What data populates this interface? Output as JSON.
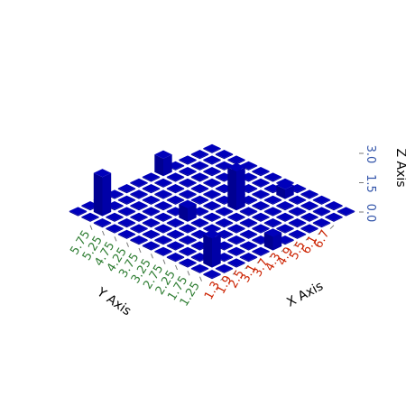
{
  "chart_data": {
    "type": "bar3d",
    "x_axis": {
      "label": "X Axis",
      "ticks": [
        "1.3",
        "1.9",
        "2.5",
        "3.1",
        "3.7",
        "4.3",
        "4.9",
        "5.5",
        "6.1",
        "6.7"
      ],
      "color": "#cc2200"
    },
    "y_axis": {
      "label": "Y Axis",
      "ticks": [
        "1.25",
        "1.75",
        "2.25",
        "2.75",
        "3.25",
        "3.75",
        "4.25",
        "4.75",
        "5.25",
        "5.75"
      ],
      "color": "#2e7d32"
    },
    "z_axis": {
      "label": "Z Axis",
      "ticks": [
        "0.0",
        "1.5",
        "3.0"
      ],
      "range": [
        0,
        3.0
      ],
      "color": "#3355aa"
    },
    "grid": {
      "cols": 12,
      "rows": 12
    },
    "bar_color": "#0000bb",
    "bars": [
      {
        "x_index": 1,
        "y_index": 10,
        "z": 2.0
      },
      {
        "x_index": 7,
        "y_index": 11,
        "z": 0.9
      },
      {
        "x_index": 7,
        "y_index": 5,
        "z": 2.0
      },
      {
        "x_index": 4,
        "y_index": 6,
        "z": 0.7
      },
      {
        "x_index": 1,
        "y_index": 1,
        "z": 1.5
      },
      {
        "x_index": 5,
        "y_index": 0,
        "z": 0.7
      },
      {
        "x_index": 10,
        "y_index": 4,
        "z": 0.5
      }
    ],
    "base_value": 0.05
  }
}
